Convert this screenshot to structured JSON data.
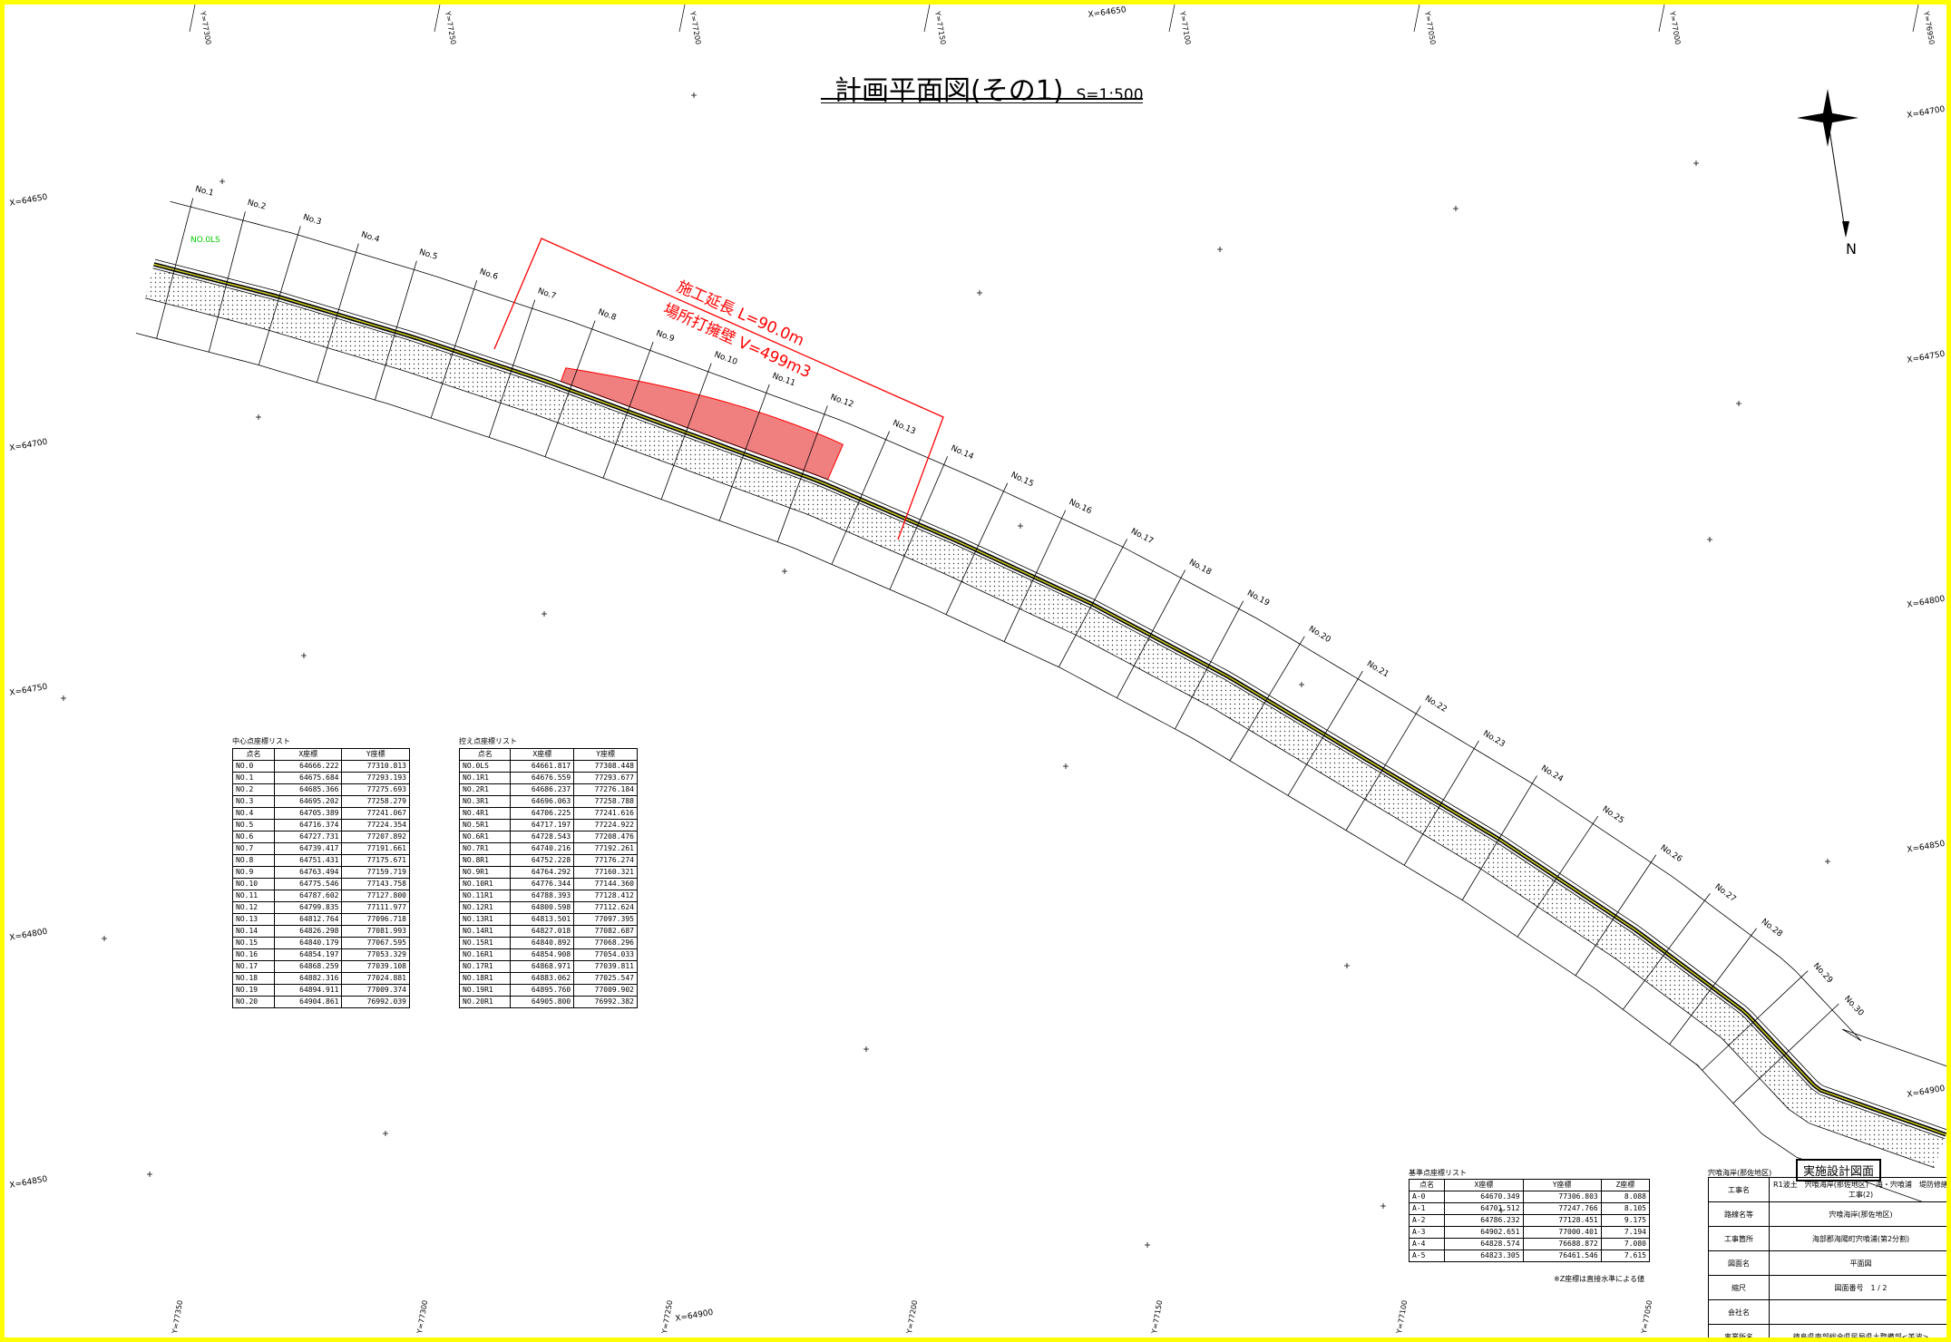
{
  "title": "計画平面図(その1)",
  "scale": "S=1:500",
  "annotation": {
    "line1": "施工延長  L=90.0m",
    "line2": "場所打擁壁  V=499m3"
  },
  "north_label": "N",
  "station_labels": [
    "No.1",
    "No.2",
    "No.3",
    "No.4",
    "No.5",
    "No.6",
    "No.7",
    "No.8",
    "No.9",
    "No.10",
    "No.11",
    "No.12",
    "No.13",
    "No.14",
    "No.15",
    "No.16",
    "No.17",
    "No.18",
    "No.19",
    "No.20",
    "No.21",
    "No.22",
    "No.23",
    "No.24",
    "No.25",
    "No.26",
    "No.27",
    "No.28",
    "No.29",
    "No.30"
  ],
  "start_label": "NO.0LS",
  "grid_labels_top": [
    "Y=77300",
    "Y=77250",
    "Y=77200",
    "Y=77150",
    "X=64650",
    "Y=77100",
    "Y=77050",
    "Y=77000",
    "Y=76950"
  ],
  "grid_labels_bottom": [
    "Y=77350",
    "Y=77300",
    "Y=77250",
    "X=64900",
    "Y=77200",
    "Y=77150",
    "Y=77100",
    "Y=77050"
  ],
  "grid_labels_left": [
    "X=64650",
    "X=64700",
    "X=64750",
    "X=64800",
    "X=64850"
  ],
  "grid_labels_right": [
    "X=64700",
    "X=64750",
    "X=64800",
    "X=64850",
    "X=64900"
  ],
  "center_table": {
    "caption": "中心点座標リスト",
    "headers": [
      "点名",
      "X座標",
      "Y座標"
    ],
    "rows": [
      [
        "NO.0",
        "64666.222",
        "77310.813"
      ],
      [
        "NO.1",
        "64675.684",
        "77293.193"
      ],
      [
        "NO.2",
        "64685.366",
        "77275.693"
      ],
      [
        "NO.3",
        "64695.202",
        "77258.279"
      ],
      [
        "NO.4",
        "64705.389",
        "77241.067"
      ],
      [
        "NO.5",
        "64716.374",
        "77224.354"
      ],
      [
        "NO.6",
        "64727.731",
        "77207.892"
      ],
      [
        "NO.7",
        "64739.417",
        "77191.661"
      ],
      [
        "NO.8",
        "64751.431",
        "77175.671"
      ],
      [
        "NO.9",
        "64763.494",
        "77159.719"
      ],
      [
        "NO.10",
        "64775.546",
        "77143.758"
      ],
      [
        "NO.11",
        "64787.602",
        "77127.800"
      ],
      [
        "NO.12",
        "64799.835",
        "77111.977"
      ],
      [
        "NO.13",
        "64812.764",
        "77096.718"
      ],
      [
        "NO.14",
        "64826.298",
        "77081.993"
      ],
      [
        "NO.15",
        "64840.179",
        "77067.595"
      ],
      [
        "NO.16",
        "64854.197",
        "77053.329"
      ],
      [
        "NO.17",
        "64868.259",
        "77039.108"
      ],
      [
        "NO.18",
        "64882.316",
        "77024.881"
      ],
      [
        "NO.19",
        "64894.911",
        "77009.374"
      ],
      [
        "NO.20",
        "64904.861",
        "76992.039"
      ]
    ]
  },
  "offset_table": {
    "caption": "控え点座標リスト",
    "headers": [
      "点名",
      "X座標",
      "Y座標"
    ],
    "rows": [
      [
        "NO.0LS",
        "64661.817",
        "77308.448"
      ],
      [
        "NO.1R1",
        "64676.559",
        "77293.677"
      ],
      [
        "NO.2R1",
        "64686.237",
        "77276.184"
      ],
      [
        "NO.3R1",
        "64696.063",
        "77258.788"
      ],
      [
        "NO.4R1",
        "64706.225",
        "77241.616"
      ],
      [
        "NO.5R1",
        "64717.197",
        "77224.922"
      ],
      [
        "NO.6R1",
        "64728.543",
        "77208.476"
      ],
      [
        "NO.7R1",
        "64740.216",
        "77192.261"
      ],
      [
        "NO.8R1",
        "64752.228",
        "77176.274"
      ],
      [
        "NO.9R1",
        "64764.292",
        "77160.321"
      ],
      [
        "NO.10R1",
        "64776.344",
        "77144.360"
      ],
      [
        "NO.11R1",
        "64788.393",
        "77128.412"
      ],
      [
        "NO.12R1",
        "64800.598",
        "77112.624"
      ],
      [
        "NO.13R1",
        "64813.501",
        "77097.395"
      ],
      [
        "NO.14R1",
        "64827.018",
        "77082.687"
      ],
      [
        "NO.15R1",
        "64840.892",
        "77068.296"
      ],
      [
        "NO.16R1",
        "64854.908",
        "77054.033"
      ],
      [
        "NO.17R1",
        "64868.971",
        "77039.811"
      ],
      [
        "NO.18R1",
        "64883.062",
        "77025.547"
      ],
      [
        "NO.19R1",
        "64895.760",
        "77009.902"
      ],
      [
        "NO.20R1",
        "64905.800",
        "76992.382"
      ]
    ]
  },
  "base_table": {
    "caption": "基準点座標リスト",
    "headers": [
      "点名",
      "X座標",
      "Y座標",
      "Z座標"
    ],
    "rows": [
      [
        "A-0",
        "64670.349",
        "77306.803",
        "8.088"
      ],
      [
        "A-1",
        "64701.512",
        "77247.766",
        "8.105"
      ],
      [
        "A-2",
        "64786.232",
        "77128.451",
        "9.175"
      ],
      [
        "A-3",
        "64902.651",
        "77000.401",
        "7.194"
      ],
      [
        "A-4",
        "64828.574",
        "76688.872",
        "7.080"
      ],
      [
        "A-5",
        "64823.305",
        "76461.546",
        "7.615"
      ]
    ],
    "note": "※Z座標は直接水準による値"
  },
  "titleblock": {
    "stamp": "実施設計図面",
    "header": "宍喰海岸(那佐地区)",
    "rows": [
      [
        "工事名",
        "R1波土　宍喰海岸(那佐地区)　海・宍喰浦　堤防修繕工事(2)"
      ],
      [
        "路線名等",
        "宍喰海岸(那佐地区)"
      ],
      [
        "工事箇所",
        "海部郡海陽町宍喰浦(第2分割)"
      ],
      [
        "図面名",
        "平面図"
      ],
      [
        "縮尺",
        "図面番号　1 / 2"
      ],
      [
        "会社名",
        ""
      ],
      [
        "事業所名",
        "徳島県南部総合県民局県土整備部<美波>"
      ]
    ]
  },
  "colors": {
    "frame": "#ffff00",
    "annotation": "#ff0000",
    "fill": "#f08080",
    "survey": "#00cc00"
  }
}
